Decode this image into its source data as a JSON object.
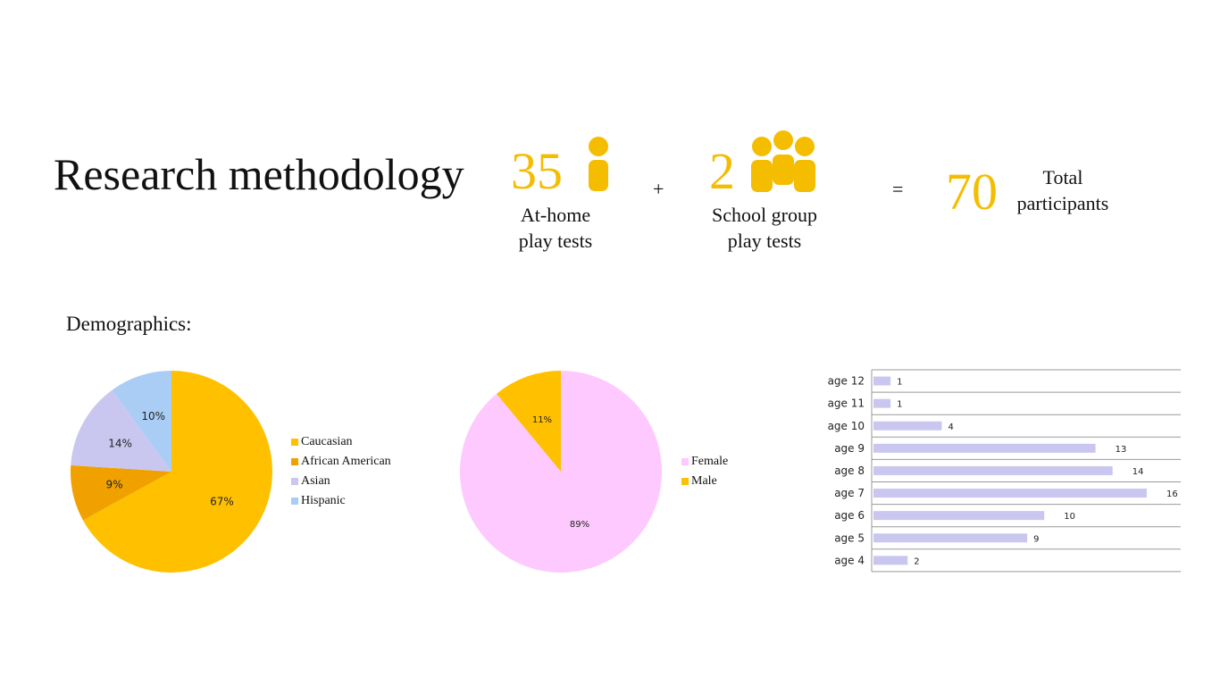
{
  "header": {
    "title": "Research methodology",
    "at_home": {
      "value": "35",
      "label_line1": "At-home",
      "label_line2": "play tests"
    },
    "plus": "+",
    "school": {
      "value": "2",
      "label_line1": "School group",
      "label_line2": "play tests"
    },
    "equals": "=",
    "total": {
      "value": "70",
      "label_line1": "Total",
      "label_line2": "participants"
    }
  },
  "demographics_label": "Demographics:",
  "colors": {
    "accent": "#f5bd00",
    "caucasian": "#ffc000",
    "african_american": "#f0a100",
    "asian": "#c9c7ef",
    "hispanic": "#a9cdf5",
    "female": "#fdc9fe",
    "male": "#ffc000",
    "age_bar": "#c9c7ef"
  },
  "icons": {
    "single": "person-icon",
    "group": "group-icon"
  },
  "chart_data": [
    {
      "type": "pie",
      "labels": [
        "Caucasian",
        "African American",
        "Asian",
        "Hispanic"
      ],
      "values": [
        67,
        9,
        14,
        10
      ],
      "data_labels": [
        "67%",
        "9%",
        "14%",
        "10%"
      ],
      "colors": [
        "#ffc000",
        "#f0a100",
        "#c9c7ef",
        "#a9cdf5"
      ],
      "legend": "right"
    },
    {
      "type": "pie",
      "labels": [
        "Female",
        "Male"
      ],
      "values": [
        89,
        11
      ],
      "data_labels": [
        "89%",
        "11%"
      ],
      "colors": [
        "#fdc9fe",
        "#ffc000"
      ],
      "legend": "right"
    },
    {
      "type": "bar",
      "orientation": "horizontal",
      "categories": [
        "age 12",
        "age 11",
        "age 10",
        "age 9",
        "age 8",
        "age 7",
        "age 6",
        "age 5",
        "age 4"
      ],
      "values": [
        1,
        1,
        4,
        13,
        14,
        16,
        10,
        9,
        2
      ],
      "xlim": [
        0,
        18
      ],
      "grid": true
    }
  ]
}
